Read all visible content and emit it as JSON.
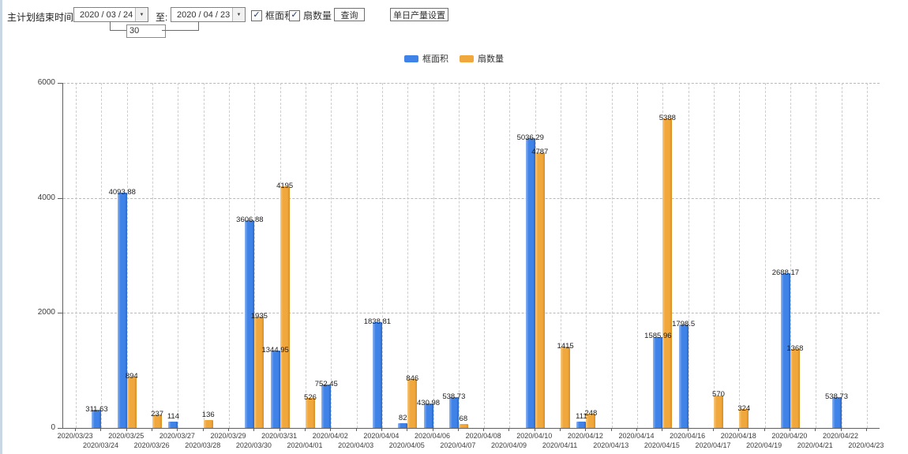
{
  "toolbar": {
    "end_time_label": "主计划结束时间:",
    "date_from": "2020 / 03 / 24",
    "to_label": "至:",
    "date_to": "2020 / 04 / 23",
    "interval_days": "30",
    "checkbox_frame_area": {
      "label": "框面积",
      "checked": true
    },
    "checkbox_fan_count": {
      "label": "扇数量",
      "checked": true
    },
    "query_button": "查询",
    "daily_output_button": "单日产量设置"
  },
  "legend": {
    "items": [
      {
        "label": "框面积",
        "color": "#3f83e8"
      },
      {
        "label": "扇数量",
        "color": "#f0a73c"
      }
    ]
  },
  "chart_data": {
    "type": "bar",
    "title": "",
    "xlabel": "",
    "ylabel": "",
    "ylim": [
      0,
      6000
    ],
    "yticks": [
      0,
      2000,
      4000,
      6000
    ],
    "grid": true,
    "legend_position": "top-center",
    "categories": [
      "2020/03/23",
      "2020/03/24",
      "2020/03/25",
      "2020/03/26",
      "2020/03/27",
      "2020/03/28",
      "2020/03/29",
      "2020/03/30",
      "2020/03/31",
      "2020/04/01",
      "2020/04/02",
      "2020/04/03",
      "2020/04/04",
      "2020/04/05",
      "2020/04/06",
      "2020/04/07",
      "2020/04/08",
      "2020/04/09",
      "2020/04/10",
      "2020/04/11",
      "2020/04/12",
      "2020/04/13",
      "2020/04/14",
      "2020/04/15",
      "2020/04/16",
      "2020/04/17",
      "2020/04/18",
      "2020/04/19",
      "2020/04/20",
      "2020/04/21",
      "2020/04/22",
      "2020/04/23"
    ],
    "series": [
      {
        "name": "框面积",
        "color": "#3f83e8",
        "values": [
          null,
          311.63,
          4093.88,
          null,
          114,
          null,
          null,
          3606.88,
          1344.95,
          null,
          752.45,
          null,
          1838.81,
          82,
          430.98,
          538.73,
          null,
          null,
          5036.29,
          null,
          111,
          null,
          null,
          1585.96,
          1798.5,
          null,
          null,
          null,
          2688.17,
          null,
          538.73,
          null
        ]
      },
      {
        "name": "扇数量",
        "color": "#f0a73c",
        "values": [
          null,
          null,
          894,
          237,
          null,
          136,
          null,
          1935,
          4195,
          526,
          null,
          null,
          null,
          846,
          null,
          68,
          null,
          null,
          4787,
          1415,
          248,
          null,
          null,
          5388,
          null,
          570,
          324,
          null,
          1368,
          null,
          null,
          null
        ]
      }
    ]
  }
}
